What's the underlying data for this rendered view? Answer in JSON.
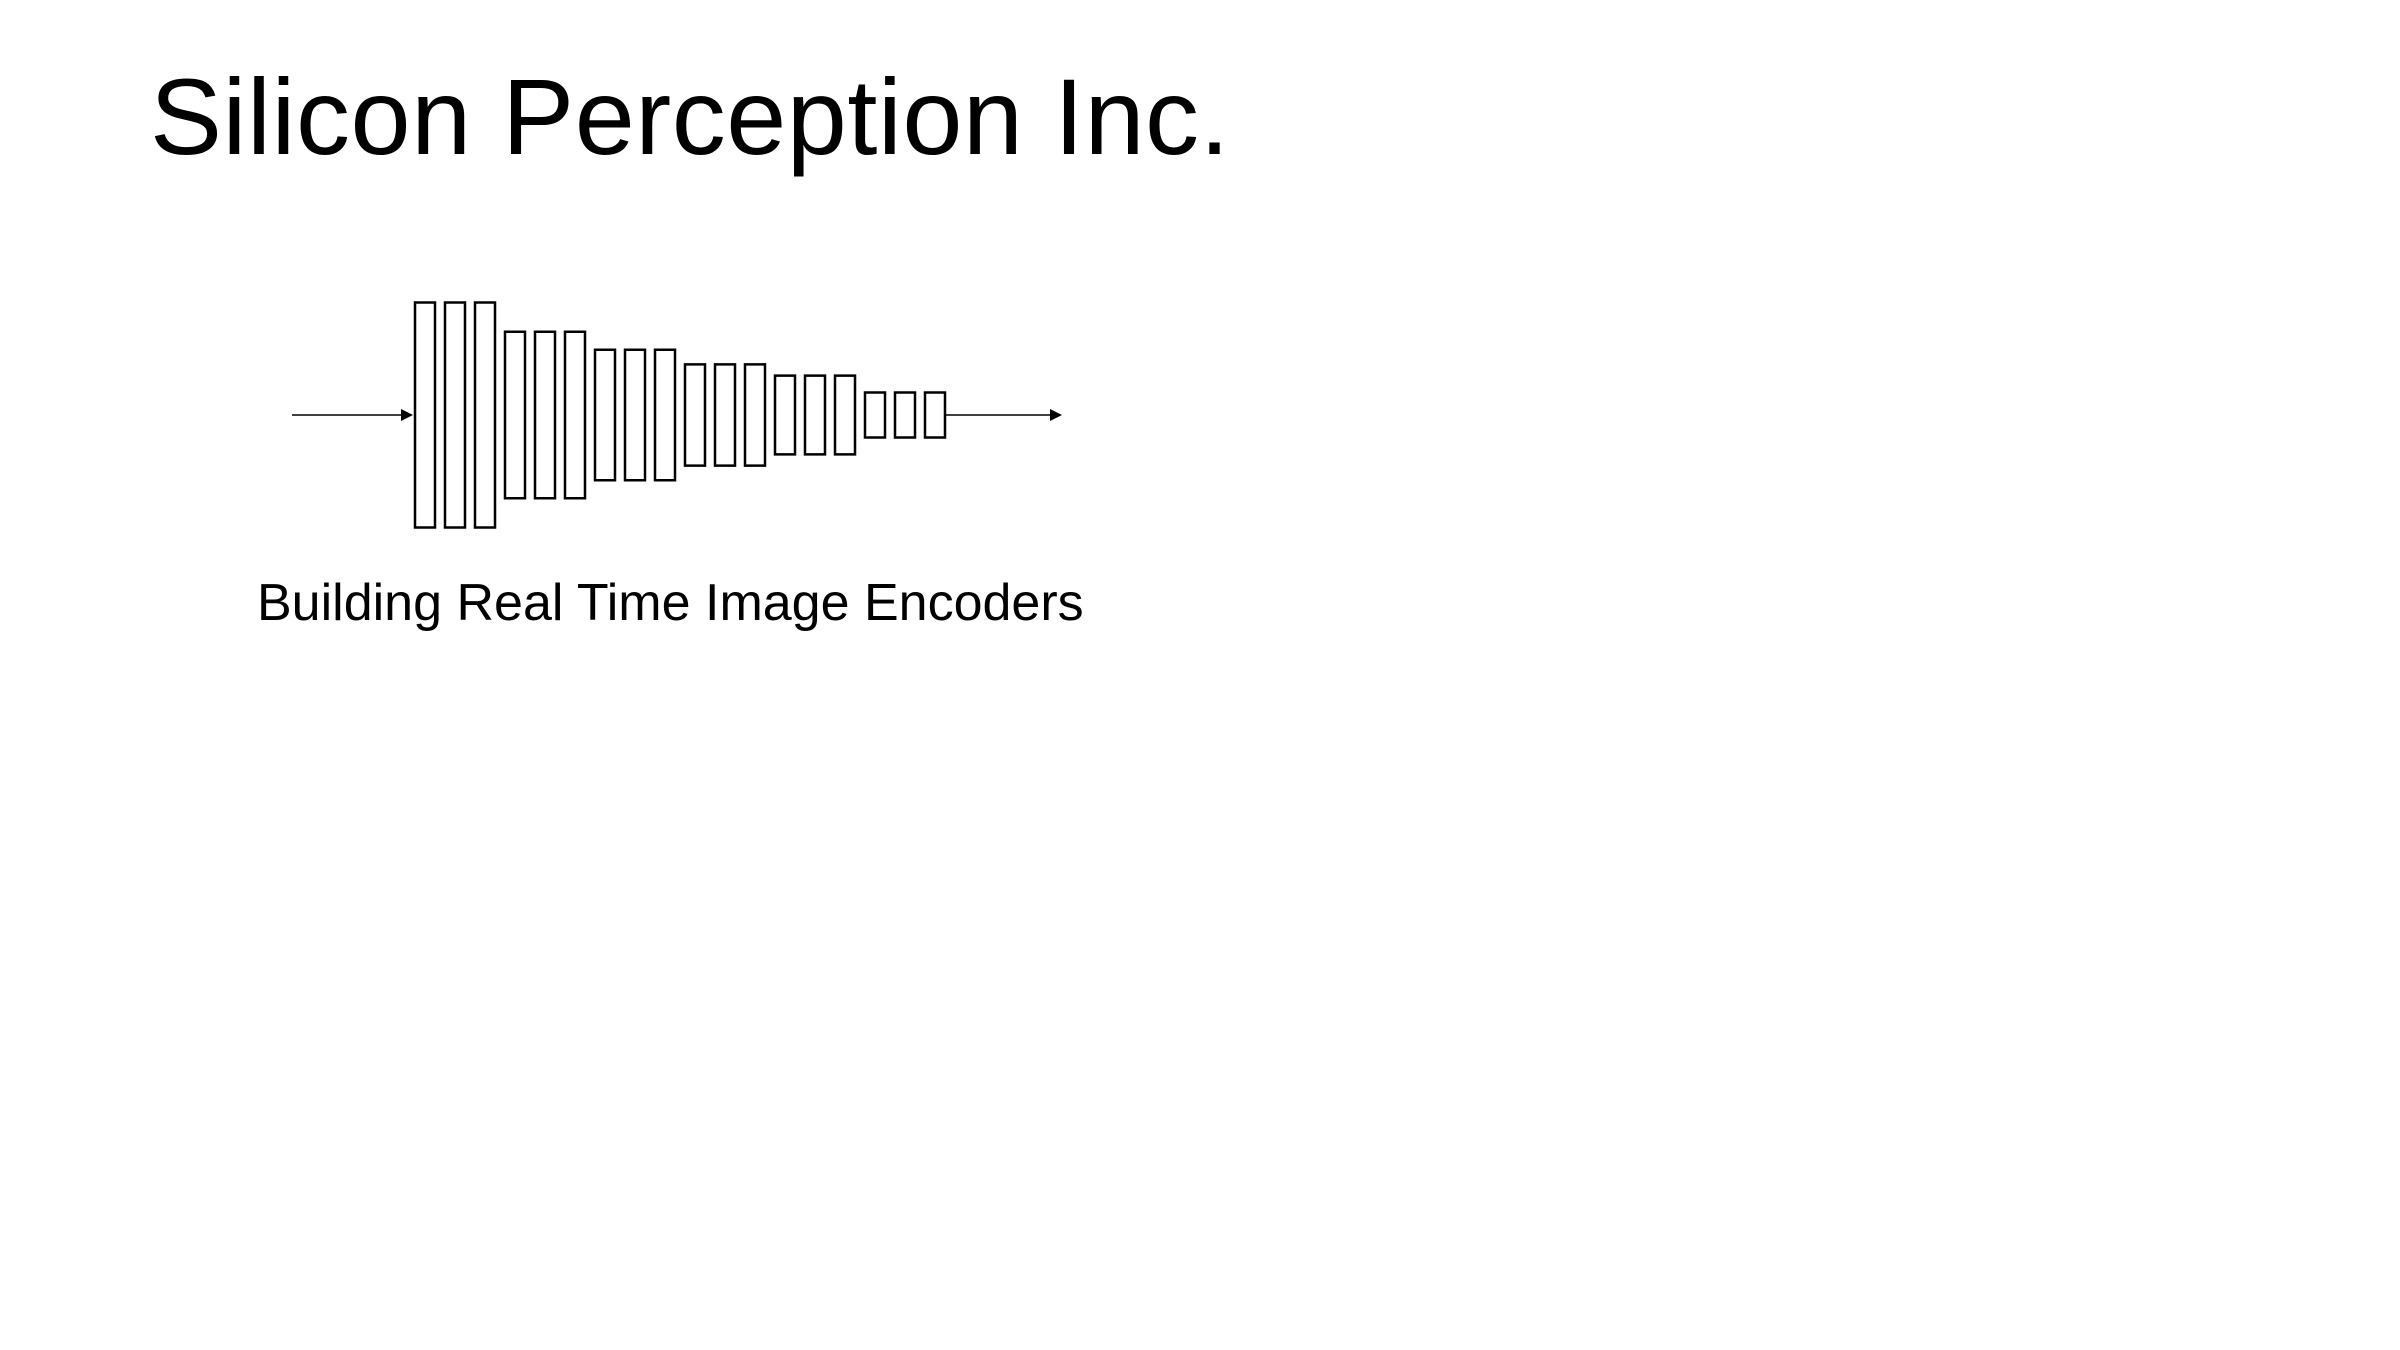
{
  "slide": {
    "title": "Silicon Perception Inc.",
    "subtitle": "Building Real Time Image Encoders"
  },
  "diagram": {
    "description_icon": "encoder-pyramid-icon",
    "stroke_color": "#000000",
    "groups": [
      {
        "bars": 3,
        "relative_height": 1.0
      },
      {
        "bars": 3,
        "relative_height": 0.74
      },
      {
        "bars": 3,
        "relative_height": 0.58
      },
      {
        "bars": 3,
        "relative_height": 0.45
      },
      {
        "bars": 3,
        "relative_height": 0.35
      },
      {
        "bars": 3,
        "relative_height": 0.2
      }
    ]
  }
}
